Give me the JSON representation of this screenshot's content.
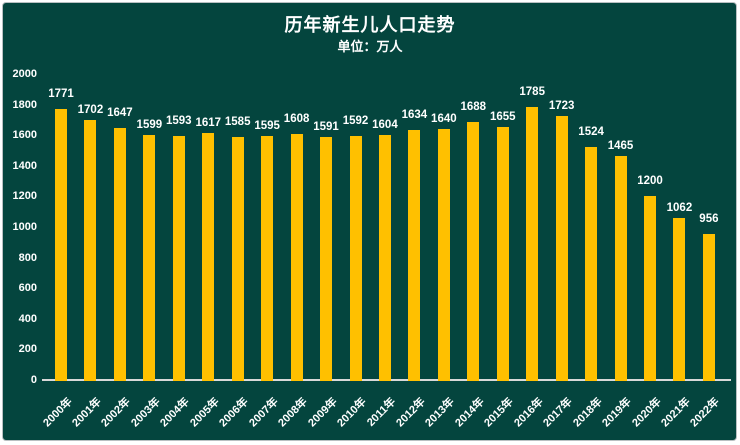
{
  "window": {
    "outer_background": "#ffffff",
    "panel_background": "#04453e",
    "panel_border_color": "#b9c0c2"
  },
  "chart_data": {
    "type": "bar",
    "title": "历年新生儿人口走势",
    "subtitle": "单位：万人",
    "categories": [
      "2000年",
      "2001年",
      "2002年",
      "2003年",
      "2004年",
      "2005年",
      "2006年",
      "2007年",
      "2008年",
      "2009年",
      "2010年",
      "2011年",
      "2012年",
      "2013年",
      "2014年",
      "2015年",
      "2016年",
      "2017年",
      "2018年",
      "2019年",
      "2020年",
      "2021年",
      "2022年"
    ],
    "values": [
      1771,
      1702,
      1647,
      1599,
      1593,
      1617,
      1585,
      1595,
      1608,
      1591,
      1592,
      1604,
      1634,
      1640,
      1688,
      1655,
      1785,
      1723,
      1524,
      1465,
      1200,
      1062,
      956
    ],
    "xlabel": "",
    "ylabel": "",
    "ylim": [
      0,
      2000
    ],
    "yticks": [
      0,
      200,
      400,
      600,
      800,
      1000,
      1200,
      1400,
      1600,
      1800,
      2000
    ],
    "grid": "off",
    "legend": "none",
    "data_labels": "outside-end",
    "bar_color": "#ffc000",
    "axis_line_color": "#d9d9d9",
    "text_color": "#ffffff"
  }
}
